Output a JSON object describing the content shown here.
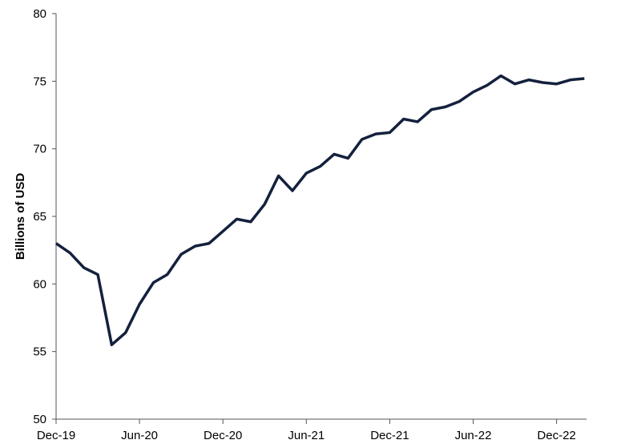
{
  "chart_data": {
    "type": "line",
    "title": "",
    "xlabel": "",
    "ylabel": "Billions of USD",
    "ylim": [
      50,
      80
    ],
    "yticks": [
      50,
      55,
      60,
      65,
      70,
      75,
      80
    ],
    "xtick_labels": [
      "Dec-19",
      "Jun-20",
      "Dec-20",
      "Jun-21",
      "Dec-21",
      "Jun-22",
      "Dec-22"
    ],
    "grid": false,
    "legend": "none",
    "colors": {
      "line": "#14213d",
      "axis": "#555555"
    },
    "x": [
      "Dec-19",
      "Jan-20",
      "Feb-20",
      "Mar-20",
      "Apr-20",
      "May-20",
      "Jun-20",
      "Jul-20",
      "Aug-20",
      "Sep-20",
      "Oct-20",
      "Nov-20",
      "Dec-20",
      "Jan-21",
      "Feb-21",
      "Mar-21",
      "Apr-21",
      "May-21",
      "Jun-21",
      "Jul-21",
      "Aug-21",
      "Sep-21",
      "Oct-21",
      "Nov-21",
      "Dec-21",
      "Jan-22",
      "Feb-22",
      "Mar-22",
      "Apr-22",
      "May-22",
      "Jun-22",
      "Jul-22",
      "Aug-22",
      "Sep-22",
      "Oct-22",
      "Nov-22",
      "Dec-22",
      "Jan-23",
      "Feb-23"
    ],
    "series": [
      {
        "values": [
          63.0,
          62.3,
          61.2,
          60.7,
          55.5,
          56.4,
          58.5,
          60.1,
          60.7,
          62.2,
          62.8,
          63.0,
          63.9,
          64.8,
          64.6,
          65.9,
          68.0,
          66.9,
          68.2,
          68.7,
          69.6,
          69.3,
          70.7,
          71.1,
          71.2,
          72.2,
          72.0,
          72.9,
          73.1,
          73.5,
          74.2,
          74.7,
          75.4,
          74.8,
          75.1,
          74.9,
          74.8,
          75.1,
          75.2
        ]
      }
    ]
  }
}
